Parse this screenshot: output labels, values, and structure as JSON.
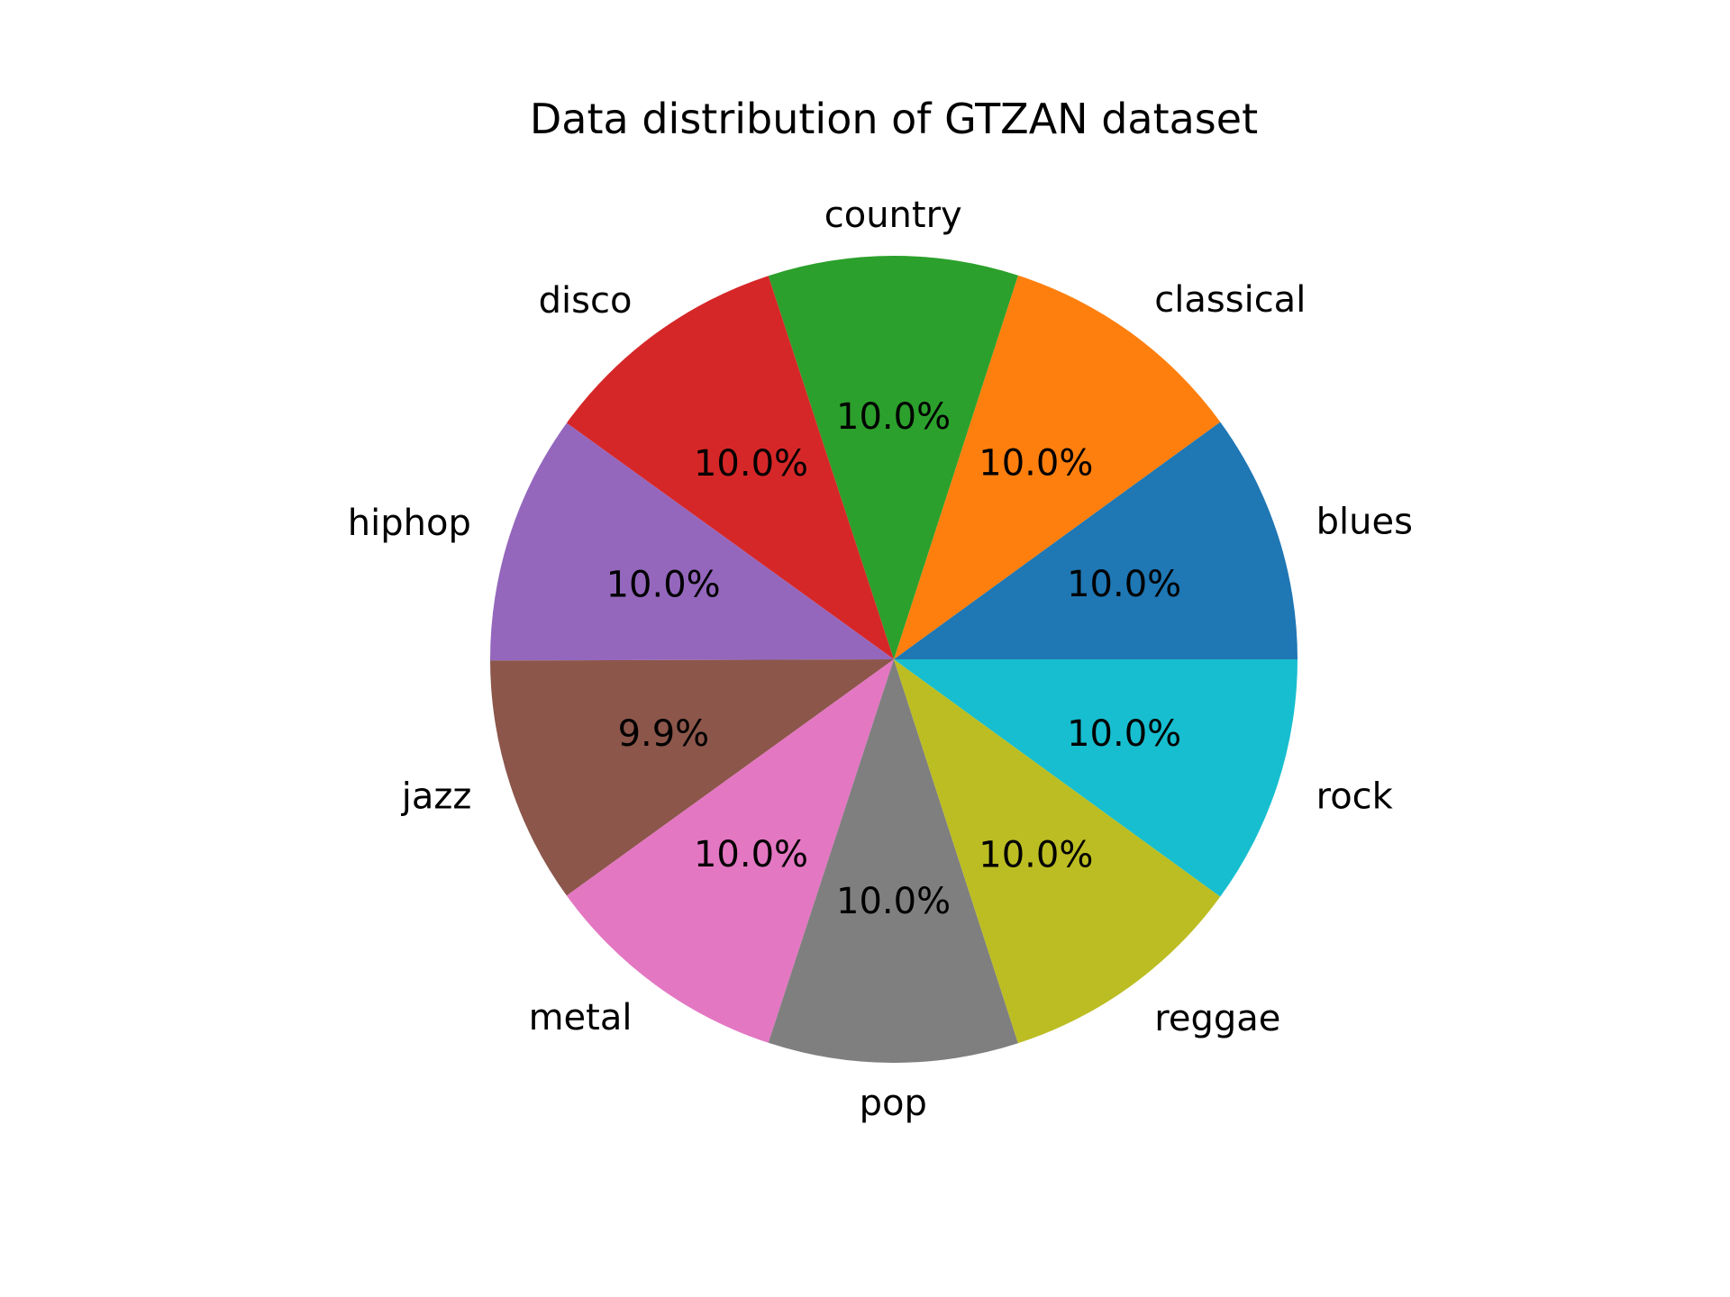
{
  "chart_data": {
    "type": "pie",
    "title": "Data distribution of GTZAN dataset",
    "categories": [
      "blues",
      "classical",
      "country",
      "disco",
      "hiphop",
      "jazz",
      "metal",
      "pop",
      "reggae",
      "rock"
    ],
    "values": [
      10.0,
      10.0,
      10.0,
      10.0,
      10.0,
      9.9,
      10.0,
      10.0,
      10.0,
      10.0
    ],
    "percent_labels": [
      "10.0%",
      "10.0%",
      "10.0%",
      "10.0%",
      "10.0%",
      "9.9%",
      "10.0%",
      "10.0%",
      "10.0%",
      "10.0%"
    ],
    "colors": [
      "#1f77b4",
      "#ff7f0e",
      "#2ca02c",
      "#d62728",
      "#9467bd",
      "#8c564b",
      "#e377c2",
      "#7f7f7f",
      "#bcbd22",
      "#17becf"
    ],
    "start_angle": 0,
    "direction": "counterclockwise"
  }
}
